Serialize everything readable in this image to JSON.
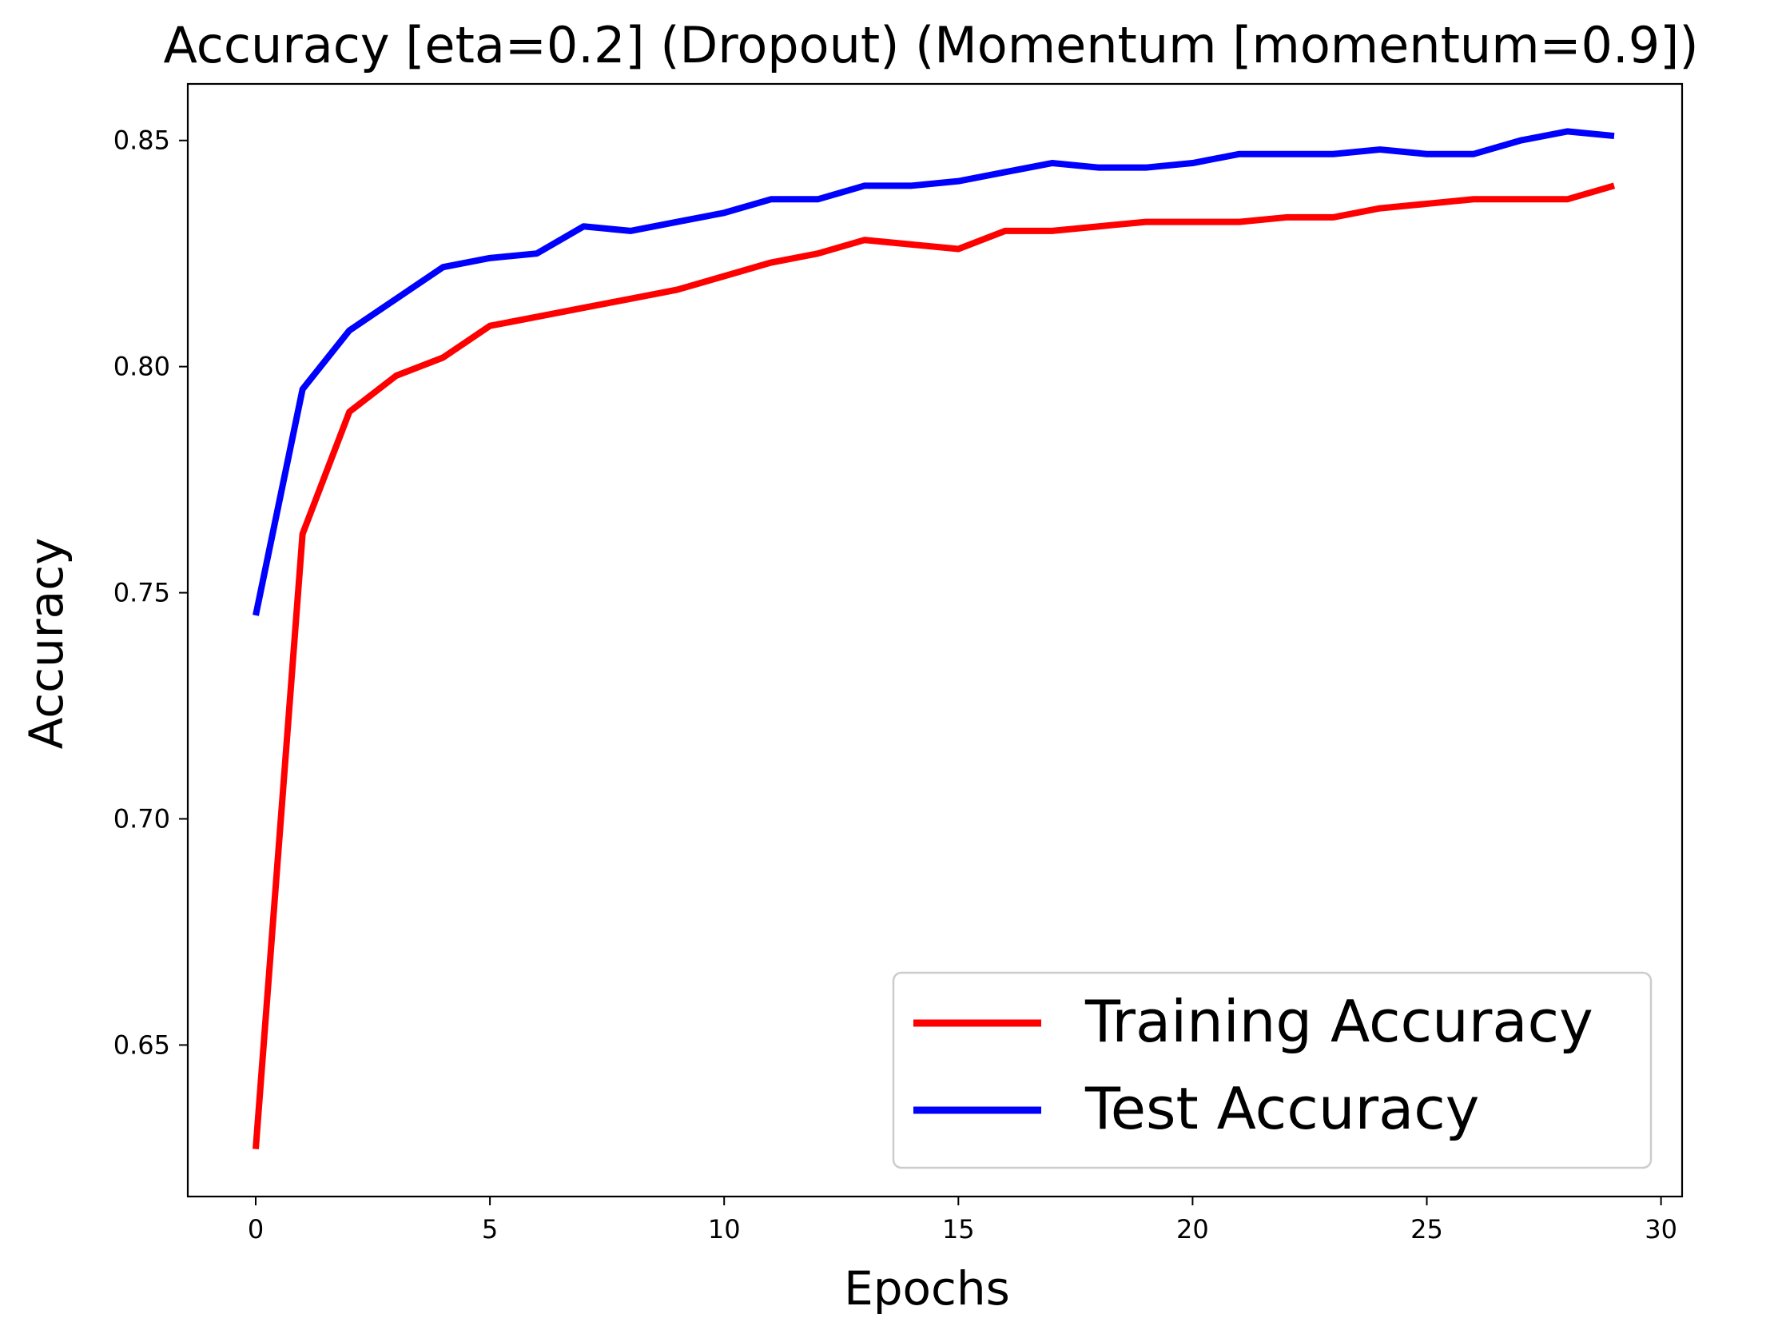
{
  "chart_data": {
    "type": "line",
    "title": "Accuracy [eta=0.2] (Dropout) (Momentum [momentum=0.9])",
    "xlabel": "Epochs",
    "ylabel": "Accuracy",
    "xlim": [
      -1.45,
      30.45
    ],
    "ylim": [
      0.6165,
      0.8625
    ],
    "xticks": [
      0,
      5,
      10,
      15,
      20,
      25,
      30
    ],
    "xtick_labels": [
      "0",
      "5",
      "10",
      "15",
      "20",
      "25",
      "30"
    ],
    "yticks": [
      0.65,
      0.7,
      0.75,
      0.8,
      0.85
    ],
    "ytick_labels": [
      "0.65",
      "0.70",
      "0.75",
      "0.80",
      "0.85"
    ],
    "grid": false,
    "legend_position": "bottom-right",
    "x": [
      0,
      1,
      2,
      3,
      4,
      5,
      6,
      7,
      8,
      9,
      10,
      11,
      12,
      13,
      14,
      15,
      16,
      17,
      18,
      19,
      20,
      21,
      22,
      23,
      24,
      25,
      26,
      27,
      28,
      29
    ],
    "series": [
      {
        "name": "Training Accuracy",
        "color": "#ff0000",
        "values": [
          0.627,
          0.763,
          0.79,
          0.798,
          0.802,
          0.809,
          0.811,
          0.813,
          0.815,
          0.817,
          0.82,
          0.823,
          0.825,
          0.828,
          0.827,
          0.826,
          0.83,
          0.83,
          0.831,
          0.832,
          0.832,
          0.832,
          0.833,
          0.833,
          0.835,
          0.836,
          0.837,
          0.837,
          0.837,
          0.84
        ]
      },
      {
        "name": "Test Accuracy",
        "color": "#0000ff",
        "values": [
          0.745,
          0.795,
          0.808,
          0.815,
          0.822,
          0.824,
          0.825,
          0.831,
          0.83,
          0.832,
          0.834,
          0.837,
          0.837,
          0.84,
          0.84,
          0.841,
          0.843,
          0.845,
          0.844,
          0.844,
          0.845,
          0.847,
          0.847,
          0.847,
          0.848,
          0.847,
          0.847,
          0.85,
          0.852,
          0.851
        ]
      }
    ]
  }
}
